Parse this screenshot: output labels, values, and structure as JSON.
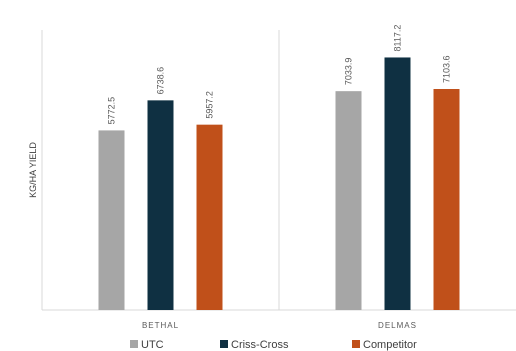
{
  "chart_data": {
    "type": "bar",
    "categories": [
      "BETHAL",
      "DELMAS"
    ],
    "series": [
      {
        "name": "UTC",
        "color": "#a6a6a6",
        "values": [
          5772.5,
          7033.9
        ],
        "labels": [
          "5772.5",
          "7033.9"
        ]
      },
      {
        "name": "Criss-Cross",
        "color": "#0f3042",
        "values": [
          6738.6,
          8117.2
        ],
        "labels": [
          "6738.6",
          "8117.2"
        ]
      },
      {
        "name": "Competitor",
        "color": "#c0501a",
        "values": [
          5957.2,
          7103.6
        ],
        "labels": [
          "5957.2",
          "7103.6"
        ]
      }
    ],
    "ylabel": "KG/HA YIELD",
    "xlabel": "",
    "ylim": [
      0,
      9000
    ],
    "grid": false,
    "legend": "bottom"
  }
}
